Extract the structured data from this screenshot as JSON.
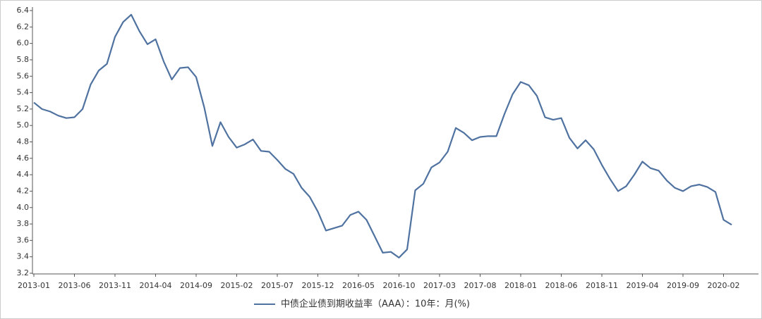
{
  "chart_data": {
    "type": "line",
    "x": [
      "2013-01",
      "2013-02",
      "2013-03",
      "2013-04",
      "2013-05",
      "2013-06",
      "2013-07",
      "2013-08",
      "2013-09",
      "2013-10",
      "2013-11",
      "2013-12",
      "2014-01",
      "2014-02",
      "2014-03",
      "2014-04",
      "2014-05",
      "2014-06",
      "2014-07",
      "2014-08",
      "2014-09",
      "2014-10",
      "2014-11",
      "2014-12",
      "2015-01",
      "2015-02",
      "2015-03",
      "2015-04",
      "2015-05",
      "2015-06",
      "2015-07",
      "2015-08",
      "2015-09",
      "2015-10",
      "2015-11",
      "2015-12",
      "2016-01",
      "2016-02",
      "2016-03",
      "2016-04",
      "2016-05",
      "2016-06",
      "2016-07",
      "2016-08",
      "2016-09",
      "2016-10",
      "2016-11",
      "2016-12",
      "2017-01",
      "2017-02",
      "2017-03",
      "2017-04",
      "2017-05",
      "2017-06",
      "2017-07",
      "2017-08",
      "2017-09",
      "2017-10",
      "2017-11",
      "2017-12",
      "2018-01",
      "2018-02",
      "2018-03",
      "2018-04",
      "2018-05",
      "2018-06",
      "2018-07",
      "2018-08",
      "2018-09",
      "2018-10",
      "2018-11",
      "2018-12",
      "2019-01",
      "2019-02",
      "2019-03",
      "2019-04",
      "2019-05",
      "2019-06",
      "2019-07",
      "2019-08",
      "2019-09",
      "2019-10",
      "2019-11",
      "2019-12",
      "2020-01",
      "2020-02",
      "2020-03"
    ],
    "series": [
      {
        "name": "中债企业债到期收益率（AAA）：10年：月(%)",
        "color": "#4f72a0",
        "values": [
          5.28,
          5.2,
          5.17,
          5.12,
          5.09,
          5.1,
          5.2,
          5.5,
          5.67,
          5.75,
          6.08,
          6.26,
          6.35,
          6.15,
          5.99,
          6.05,
          5.78,
          5.56,
          5.7,
          5.71,
          5.59,
          5.22,
          4.75,
          5.04,
          4.86,
          4.73,
          4.77,
          4.83,
          4.69,
          4.68,
          4.58,
          4.47,
          4.41,
          4.24,
          4.13,
          3.95,
          3.72,
          3.75,
          3.78,
          3.91,
          3.95,
          3.85,
          3.65,
          3.45,
          3.46,
          3.39,
          3.49,
          4.21,
          4.29,
          4.49,
          4.55,
          4.68,
          4.97,
          4.91,
          4.82,
          4.86,
          4.87,
          4.87,
          5.14,
          5.38,
          5.53,
          5.49,
          5.36,
          5.1,
          5.07,
          5.09,
          4.85,
          4.72,
          4.82,
          4.71,
          4.52,
          4.35,
          4.2,
          4.26,
          4.4,
          4.56,
          4.48,
          4.45,
          4.33,
          4.24,
          4.2,
          4.26,
          4.28,
          4.25,
          4.19,
          3.85,
          3.79
        ]
      }
    ],
    "xticks": [
      "2013-01",
      "2013-06",
      "2013-11",
      "2014-04",
      "2014-09",
      "2015-02",
      "2015-07",
      "2015-12",
      "2016-05",
      "2016-10",
      "2017-03",
      "2017-08",
      "2018-01",
      "2018-06",
      "2018-11",
      "2019-04",
      "2019-09",
      "2020-02"
    ],
    "ylim": [
      3.2,
      6.4
    ],
    "yticks": [
      3.2,
      3.4,
      3.6,
      3.8,
      {
        "value": 4.0,
        "label": "4.0"
      },
      4.2,
      4.4,
      4.6,
      4.8,
      {
        "value": 5.0,
        "label": "5.0"
      },
      5.2,
      5.4,
      5.6,
      5.8,
      {
        "value": 6.0,
        "label": "6.0"
      },
      6.2,
      6.4
    ]
  }
}
